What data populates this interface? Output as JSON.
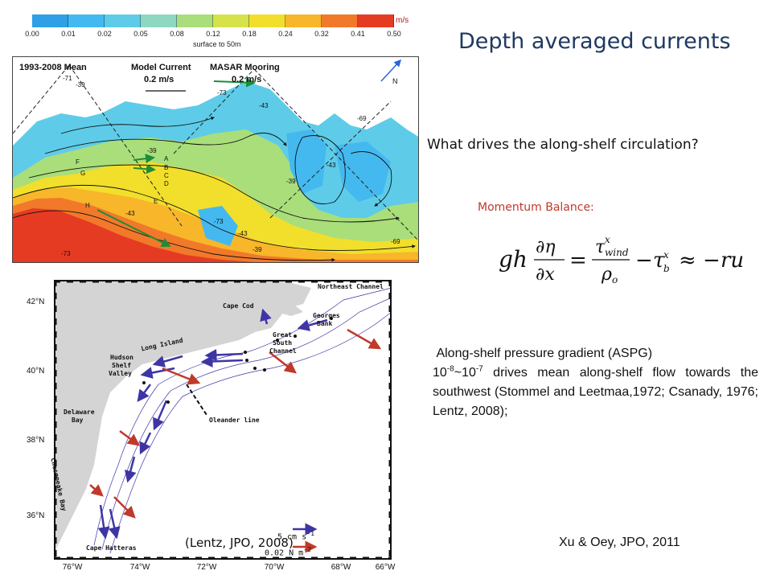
{
  "colorbar": {
    "unit": "m/s",
    "caption": "surface to 50m",
    "ticks": [
      "0.00",
      "0.01",
      "0.02",
      "0.05",
      "0.08",
      "0.12",
      "0.18",
      "0.24",
      "0.32",
      "0.41",
      "0.50"
    ],
    "colors": [
      "#2f9fe6",
      "#44b9f0",
      "#5ecce8",
      "#8ed8c2",
      "#a9de7a",
      "#d5e24a",
      "#f2df2c",
      "#f8b62a",
      "#f2792a",
      "#e53b23"
    ]
  },
  "top_map": {
    "legend_mean": "1993-2008 Mean",
    "legend_model": "Model Current",
    "legend_model_value": "0.2 m/s",
    "legend_masar": "MASAR Mooring",
    "legend_masar_value": "0.2 m/s",
    "north_label": "N",
    "site_letters": [
      "A",
      "B",
      "C",
      "D",
      "E",
      "F",
      "G",
      "H"
    ],
    "contour_labels": [
      "-71",
      "-39",
      "-73",
      "-43",
      "-69",
      "-39",
      "-43",
      "-39",
      "-73",
      "-43",
      "-69",
      "-39",
      "-43",
      "-73"
    ]
  },
  "bottom_map": {
    "lat_labels": [
      "42°N",
      "40°N",
      "38°N",
      "36°N"
    ],
    "lon_labels": [
      "76°W",
      "74°W",
      "72°W",
      "70°W",
      "68°W",
      "66°W"
    ],
    "places": {
      "northeast_channel": "Northeast Channel",
      "cape_cod": "Cape Cod",
      "georges_bank_1": "Georges",
      "georges_bank_2": "Bank",
      "great_south_1": "Great",
      "great_south_2": "South",
      "great_south_3": "Channel",
      "long_island": "Long Island",
      "hudson_1": "Hudson",
      "hudson_2": "Shelf",
      "hudson_3": "Valley",
      "delaware_1": "Delaware",
      "delaware_2": "Bay",
      "chesapeake": "Chesapeake Bay",
      "oleander": "Oleander line",
      "cape_hatteras": "Cape Hatteras"
    },
    "legend_blue": "5 cm s",
    "legend_blue_exp": "-1",
    "legend_red": "0.02 N m",
    "legend_red_exp": "-2",
    "colors": {
      "blue": "#3e35a5",
      "red": "#c0392b",
      "land": "#d4d4d4"
    }
  },
  "title": "Depth averaged currents",
  "question": "What drives the along-shelf circulation?",
  "momentum_label": "Momentum Balance:",
  "aspg": {
    "line1": "Along-shelf pressure gradient (ASPG)",
    "base1": "10",
    "exp1": "-8",
    "sep": "~",
    "base2": "10",
    "exp2": "-7",
    "line2_rest": " drives mean along-shelf flow towards the southwest (Stommel and Leetmaa,1972; Csanady, 1976; Lentz, 2008);"
  },
  "citation_left": "(Lentz, JPO, 2008)",
  "citation_right": "Xu & Oey, JPO, 2011",
  "colors": {
    "title": "#1f3a60",
    "momentum": "#c0392b"
  }
}
